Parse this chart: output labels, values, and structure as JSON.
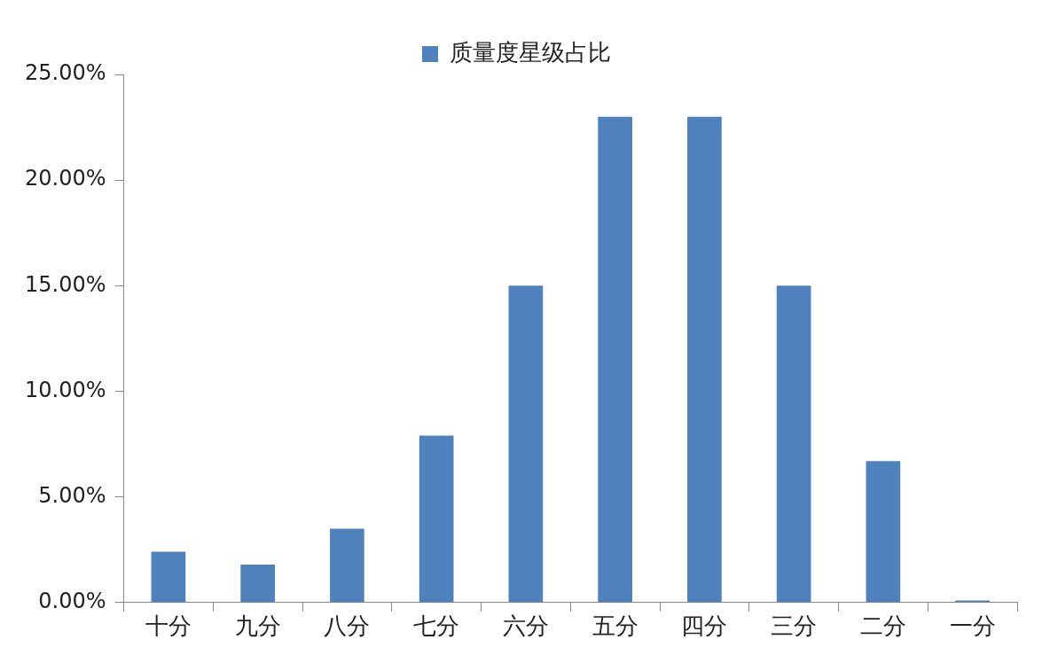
{
  "chart_data": {
    "type": "bar",
    "categories": [
      "十分",
      "九分",
      "八分",
      "七分",
      "六分",
      "五分",
      "四分",
      "三分",
      "二分",
      "一分"
    ],
    "series": [
      {
        "name": "质量度星级占比",
        "color": "#4f81bd",
        "values": [
          2.4,
          1.8,
          3.5,
          7.9,
          15,
          23,
          23,
          15,
          6.7,
          0.1
        ]
      }
    ],
    "ylim": [
      0,
      25
    ],
    "yticks": [
      {
        "value": 0,
        "label": "0.00%"
      },
      {
        "value": 5,
        "label": "5.00%"
      },
      {
        "value": 10,
        "label": "10.00%"
      },
      {
        "value": 15,
        "label": "15.00%"
      },
      {
        "value": 20,
        "label": "20.00%"
      },
      {
        "value": 25,
        "label": "25.00%"
      }
    ],
    "grid": false,
    "legend": "top"
  }
}
